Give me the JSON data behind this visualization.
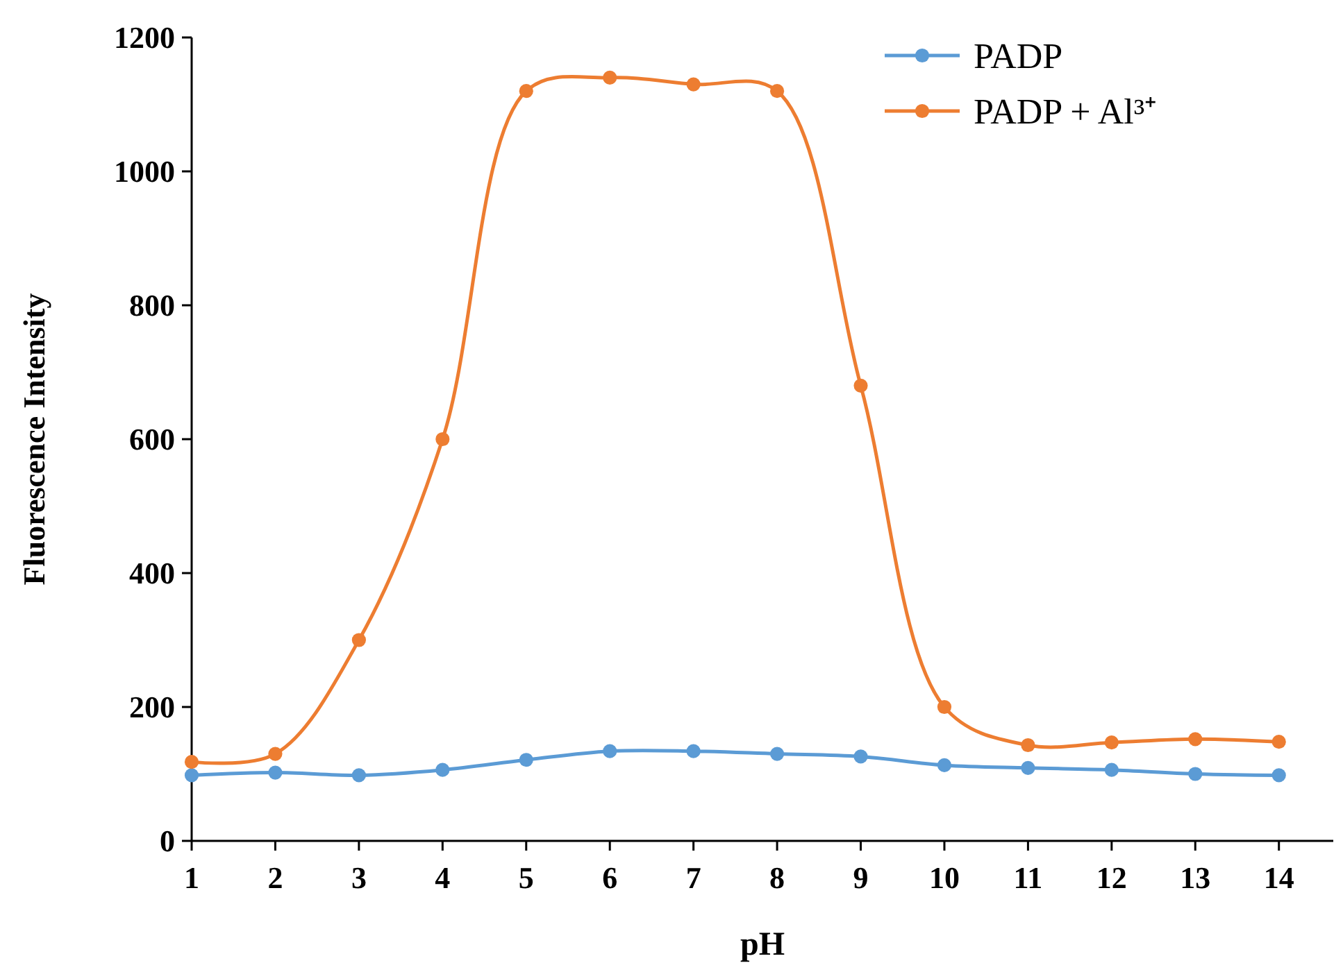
{
  "chart_data": {
    "type": "line",
    "xlabel": "pH",
    "ylabel": "Fluorescence Intensity",
    "x": [
      1,
      2,
      3,
      4,
      5,
      6,
      7,
      8,
      9,
      10,
      11,
      12,
      13,
      14
    ],
    "series": [
      {
        "name": "PADP",
        "color": "#5b9bd5",
        "values": [
          98,
          102,
          98,
          106,
          121,
          134,
          134,
          130,
          126,
          113,
          109,
          106,
          100,
          98
        ]
      },
      {
        "name": "PADP + Al³⁺",
        "color": "#ed7d31",
        "values": [
          118,
          130,
          300,
          600,
          1120,
          1140,
          1130,
          1120,
          680,
          200,
          143,
          147,
          152,
          148
        ]
      }
    ],
    "xlim": [
      1,
      14.65
    ],
    "xticks": [
      1,
      2,
      3,
      4,
      5,
      6,
      7,
      8,
      9,
      10,
      11,
      12,
      13,
      14
    ],
    "ylim": [
      0,
      1200
    ],
    "yticks": [
      0,
      200,
      400,
      600,
      800,
      1000,
      1200
    ],
    "grid": false,
    "legend": "top right",
    "marker": "circle",
    "line_style": "solid"
  }
}
